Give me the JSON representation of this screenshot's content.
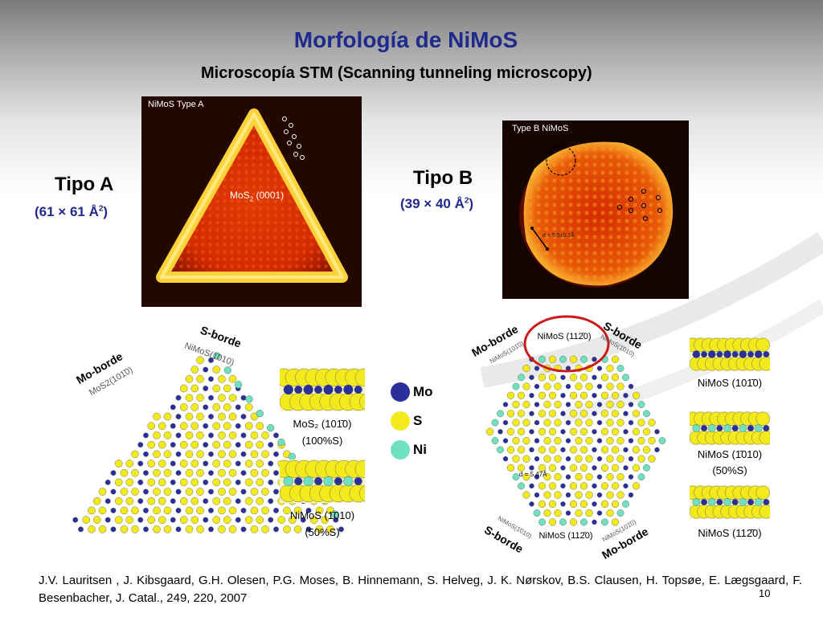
{
  "slide": {
    "title": "Morfología de NiMoS",
    "subtitle": "Microscopía STM (Scanning tunneling microscopy)",
    "page_number": "10"
  },
  "type_a": {
    "heading": "Tipo A",
    "area": "(61 × 61 Å",
    "area_sup": "2",
    "area_end": ")",
    "image_label": "NiMoS Type A",
    "surface_label": "MoS",
    "surface_sub": "2",
    "surface_face": " (0001)"
  },
  "type_b": {
    "heading": "Tipo B",
    "area": "(39 × 40 Å",
    "area_sup": "2",
    "area_end": ")",
    "image_label": "Type B NiMoS",
    "distance_label": "d = 5.5±0.1Å"
  },
  "model_a": {
    "s_edge": "S-borde",
    "s_edge_sub": "NiMoS(1̄010)",
    "mo_edge": "Mo-borde",
    "mo_edge_sub": "MoS2(101̄0)"
  },
  "model_b": {
    "mo_edge_top": "Mo-borde",
    "mo_edge_top_sub": "NiMoS(101̄0)",
    "s_edge_top": "S-borde",
    "s_edge_top_sub": "NiMoS(1̄010)",
    "top_face": "NiMoS (112̄0)",
    "s_edge_bottom": "S-borde",
    "s_edge_bottom_sub": "NiMoS(1̄010)",
    "bottom_face": "NiMoS (112̄0)",
    "mo_edge_bottom": "Mo-borde",
    "mo_edge_bottom_sub": "NiMoS(101̄0)",
    "distance_label": "d = 5.47Å"
  },
  "strips_a": [
    {
      "label": "MoS₂ (101̄0)",
      "note": "(100%S)"
    },
    {
      "label": "NiMoS (1̄010)",
      "note": "(50%S)"
    }
  ],
  "strips_b": [
    {
      "label": "NiMoS (101̄0)",
      "note": ""
    },
    {
      "label": "NiMoS (1̄010)",
      "note": "(50%S)"
    },
    {
      "label": "NiMoS (112̄0)",
      "note": ""
    }
  ],
  "legend": [
    {
      "label": "Mo",
      "color": "#2a2f9a"
    },
    {
      "label": "S",
      "color": "#f2ea1c"
    },
    {
      "label": "Ni",
      "color": "#6fe0c0"
    }
  ],
  "reference": "J.V. Lauritsen , J. Kibsgaard, G.H. Olesen, P.G. Moses, B. Hinnemann, S. Helveg, J. K. Nørskov, B.S. Clausen, H. Topsøe, E. Lægsgaard, F. Besenbacher, J. Catal., 249, 220, 2007",
  "colors": {
    "title": "#1f2a8c",
    "highlight": "#cc1a1a"
  }
}
